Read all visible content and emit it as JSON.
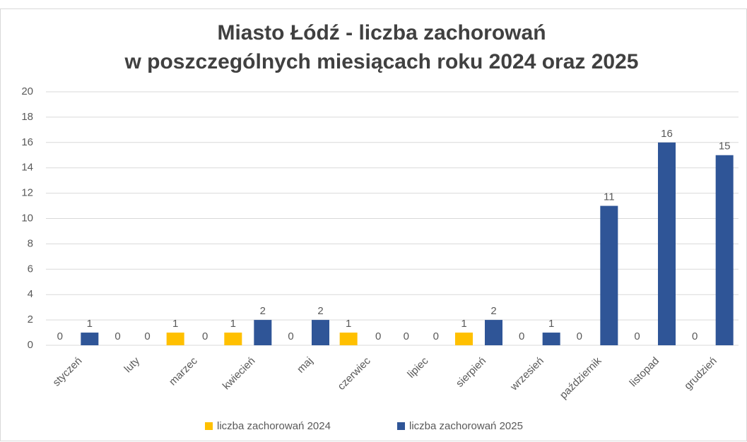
{
  "chart_data": {
    "type": "bar",
    "title": [
      "Miasto Łódź - liczba zachorowań",
      "w poszczególnych miesiącach roku 2024 oraz 2025"
    ],
    "categories": [
      "styczeń",
      "luty",
      "marzec",
      "kwiecień",
      "maj",
      "czerwiec",
      "lipiec",
      "sierpień",
      "wrzesień",
      "październik",
      "listopad",
      "grudzień"
    ],
    "series": [
      {
        "name": "liczba zachorowań 2024",
        "color": "#ffc000",
        "values": [
          0,
          0,
          1,
          1,
          0,
          1,
          0,
          1,
          0,
          0,
          0,
          0
        ]
      },
      {
        "name": "liczba zachorowań 2025",
        "color": "#2f5597",
        "values": [
          1,
          0,
          0,
          2,
          2,
          0,
          0,
          2,
          1,
          11,
          16,
          15
        ]
      }
    ],
    "ylim": [
      0,
      20
    ],
    "yticks": [
      0,
      2,
      4,
      6,
      8,
      10,
      12,
      14,
      16,
      18,
      20
    ],
    "grid": true,
    "legend": "bottom"
  }
}
